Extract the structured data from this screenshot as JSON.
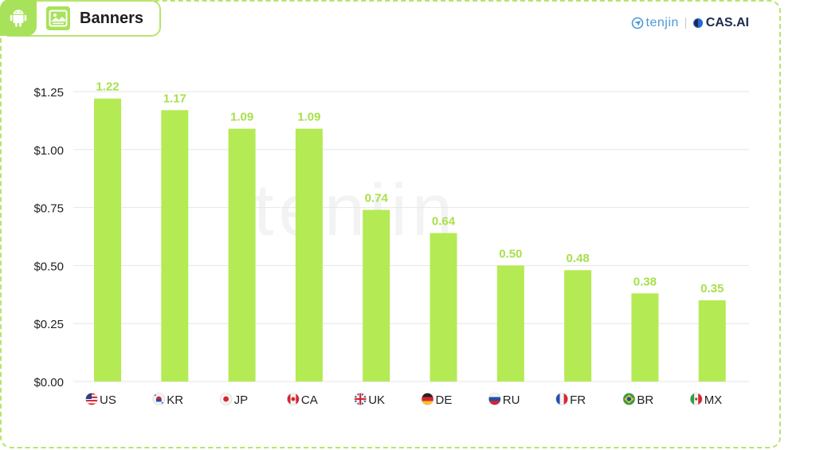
{
  "header": {
    "title": "Banners",
    "brand_tenjin": "tenjin",
    "brand_cas": "CAS.AI",
    "android_icon": "android-icon",
    "banner_icon": "image-banner-icon"
  },
  "watermark": "tenjin",
  "colors": {
    "bar": "#b4ea54",
    "value_label": "#a8e04a",
    "accent": "#a8e25a",
    "grid": "#e6e6e6",
    "axis_text": "#222222"
  },
  "chart_data": {
    "type": "bar",
    "title": "Banners",
    "categories": [
      "US",
      "KR",
      "JP",
      "CA",
      "UK",
      "DE",
      "RU",
      "FR",
      "BR",
      "MX"
    ],
    "flags": [
      "us-flag-icon",
      "kr-flag-icon",
      "jp-flag-icon",
      "ca-flag-icon",
      "uk-flag-icon",
      "de-flag-icon",
      "ru-flag-icon",
      "fr-flag-icon",
      "br-flag-icon",
      "mx-flag-icon"
    ],
    "values": [
      1.22,
      1.17,
      1.09,
      1.09,
      0.74,
      0.64,
      0.5,
      0.48,
      0.38,
      0.35
    ],
    "value_labels": [
      "1.22",
      "1.17",
      "1.09",
      "1.09",
      "0.74",
      "0.64",
      "0.50",
      "0.48",
      "0.38",
      "0.35"
    ],
    "ylim": [
      0,
      1.25
    ],
    "yticks": [
      0,
      0.25,
      0.5,
      0.75,
      1.0,
      1.25
    ],
    "ytick_labels": [
      "$0.00",
      "$0.25",
      "$0.50",
      "$0.75",
      "$1.00",
      "$1.25"
    ],
    "grid": true,
    "legend": "none"
  }
}
